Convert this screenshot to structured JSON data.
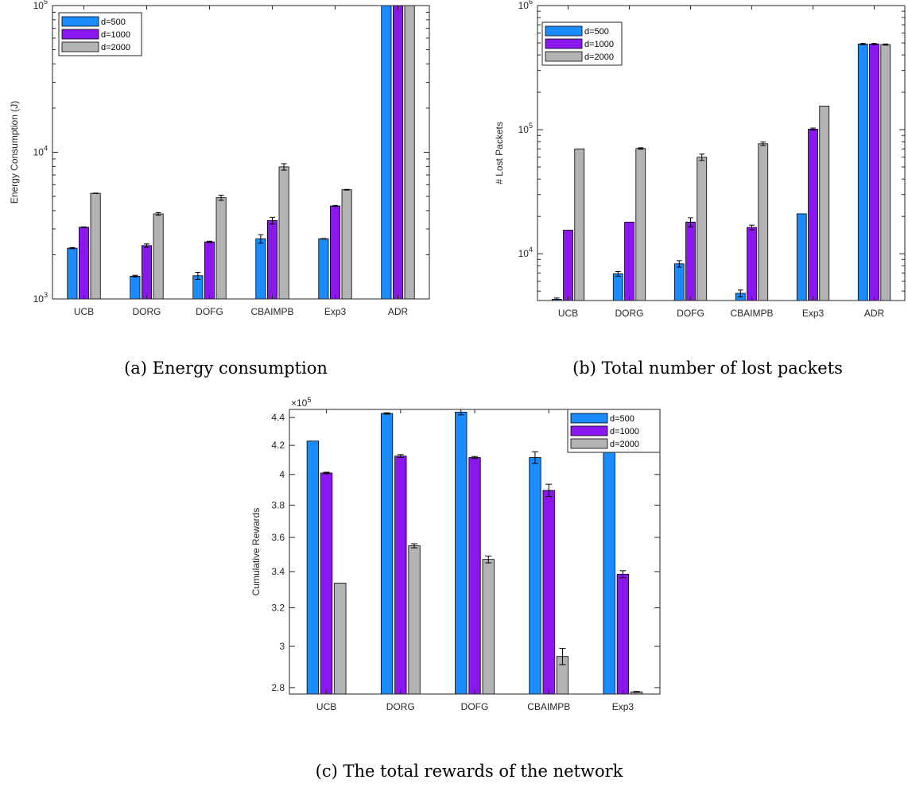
{
  "colors": {
    "d500": "#1a8cff",
    "d1000": "#8b17f0",
    "d2000": "#b3b3b3"
  },
  "chart_data": [
    {
      "type": "bar",
      "caption": "(a) Energy consumption",
      "ylabel": "Energy Consumption (J)",
      "yscale": "log",
      "ylim": [
        1000,
        100000
      ],
      "ytick_labels": [
        {
          "value": 1000,
          "base": "10",
          "exp": "3"
        },
        {
          "value": 10000,
          "base": "10",
          "exp": "4"
        },
        {
          "value": 100000,
          "base": "10",
          "exp": "5"
        }
      ],
      "legend_position": "top-left",
      "categories": [
        "UCB",
        "DORG",
        "DOFG",
        "CBAIMPB",
        "Exp3",
        "ADR"
      ],
      "series": [
        {
          "name": "d=500",
          "values": [
            2220,
            1430,
            1440,
            2570,
            2570,
            100000
          ],
          "errors": [
            20,
            20,
            80,
            170,
            10,
            0
          ]
        },
        {
          "name": "d=1000",
          "values": [
            3080,
            2310,
            2450,
            3420,
            4300,
            100000
          ],
          "errors": [
            15,
            60,
            25,
            180,
            30,
            0
          ]
        },
        {
          "name": "d=2000",
          "values": [
            5250,
            3800,
            4900,
            7950,
            5550,
            100000
          ],
          "errors": [
            15,
            80,
            200,
            400,
            30,
            0
          ]
        }
      ]
    },
    {
      "type": "bar",
      "caption": "(b) Total number of lost packets",
      "ylabel": "# Lost Packets",
      "yscale": "log",
      "ylim": [
        4200,
        1000000
      ],
      "ytick_labels": [
        {
          "value": 10000,
          "base": "10",
          "exp": "4"
        },
        {
          "value": 100000,
          "base": "10",
          "exp": "5"
        },
        {
          "value": 1000000,
          "base": "10",
          "exp": "6"
        }
      ],
      "legend_position": "top-left",
      "categories": [
        "UCB",
        "DORG",
        "DOFG",
        "CBAIMPB",
        "Exp3",
        "ADR"
      ],
      "series": [
        {
          "name": "d=500",
          "values": [
            4300,
            6900,
            8300,
            4800,
            21000,
            490000
          ],
          "errors": [
            100,
            300,
            500,
            300,
            0,
            5000
          ]
        },
        {
          "name": "d=1000",
          "values": [
            15500,
            18000,
            18000,
            16300,
            101000,
            490000
          ],
          "errors": [
            0,
            0,
            1500,
            700,
            2000,
            5000
          ]
        },
        {
          "name": "d=2000",
          "values": [
            70000,
            70500,
            60000,
            77000,
            155000,
            485000
          ],
          "errors": [
            0,
            1000,
            3500,
            2500,
            0,
            5000
          ]
        }
      ]
    },
    {
      "type": "bar",
      "caption": "(c) The total rewards of the network",
      "ylabel": "Cumulative Rewards",
      "yscale": "log",
      "ylim": [
        277000,
        446000
      ],
      "exponent_label": {
        "base": "×10",
        "exp": "5"
      },
      "ytick_labels": [
        {
          "value": 280000,
          "label": "2.8"
        },
        {
          "value": 300000,
          "label": "3"
        },
        {
          "value": 320000,
          "label": "3.2"
        },
        {
          "value": 340000,
          "label": "3.4"
        },
        {
          "value": 360000,
          "label": "3.6"
        },
        {
          "value": 380000,
          "label": "3.8"
        },
        {
          "value": 400000,
          "label": "4"
        },
        {
          "value": 420000,
          "label": "4.2"
        },
        {
          "value": 440000,
          "label": "4.4"
        }
      ],
      "legend_position": "top-right",
      "categories": [
        "UCB",
        "DORG",
        "DOFG",
        "CBAIMPB",
        "Exp3"
      ],
      "series": [
        {
          "name": "d=500",
          "values": [
            423000,
            443000,
            444000,
            411500,
            422500
          ],
          "errors": [
            0,
            500,
            2000,
            4000,
            0
          ]
        },
        {
          "name": "d=1000",
          "values": [
            401000,
            412500,
            411500,
            389500,
            338500
          ],
          "errors": [
            500,
            1000,
            700,
            4000,
            2000
          ]
        },
        {
          "name": "d=2000",
          "values": [
            333500,
            355000,
            347000,
            295000,
            278000
          ],
          "errors": [
            0,
            1200,
            2000,
            4000,
            200
          ]
        }
      ]
    }
  ]
}
